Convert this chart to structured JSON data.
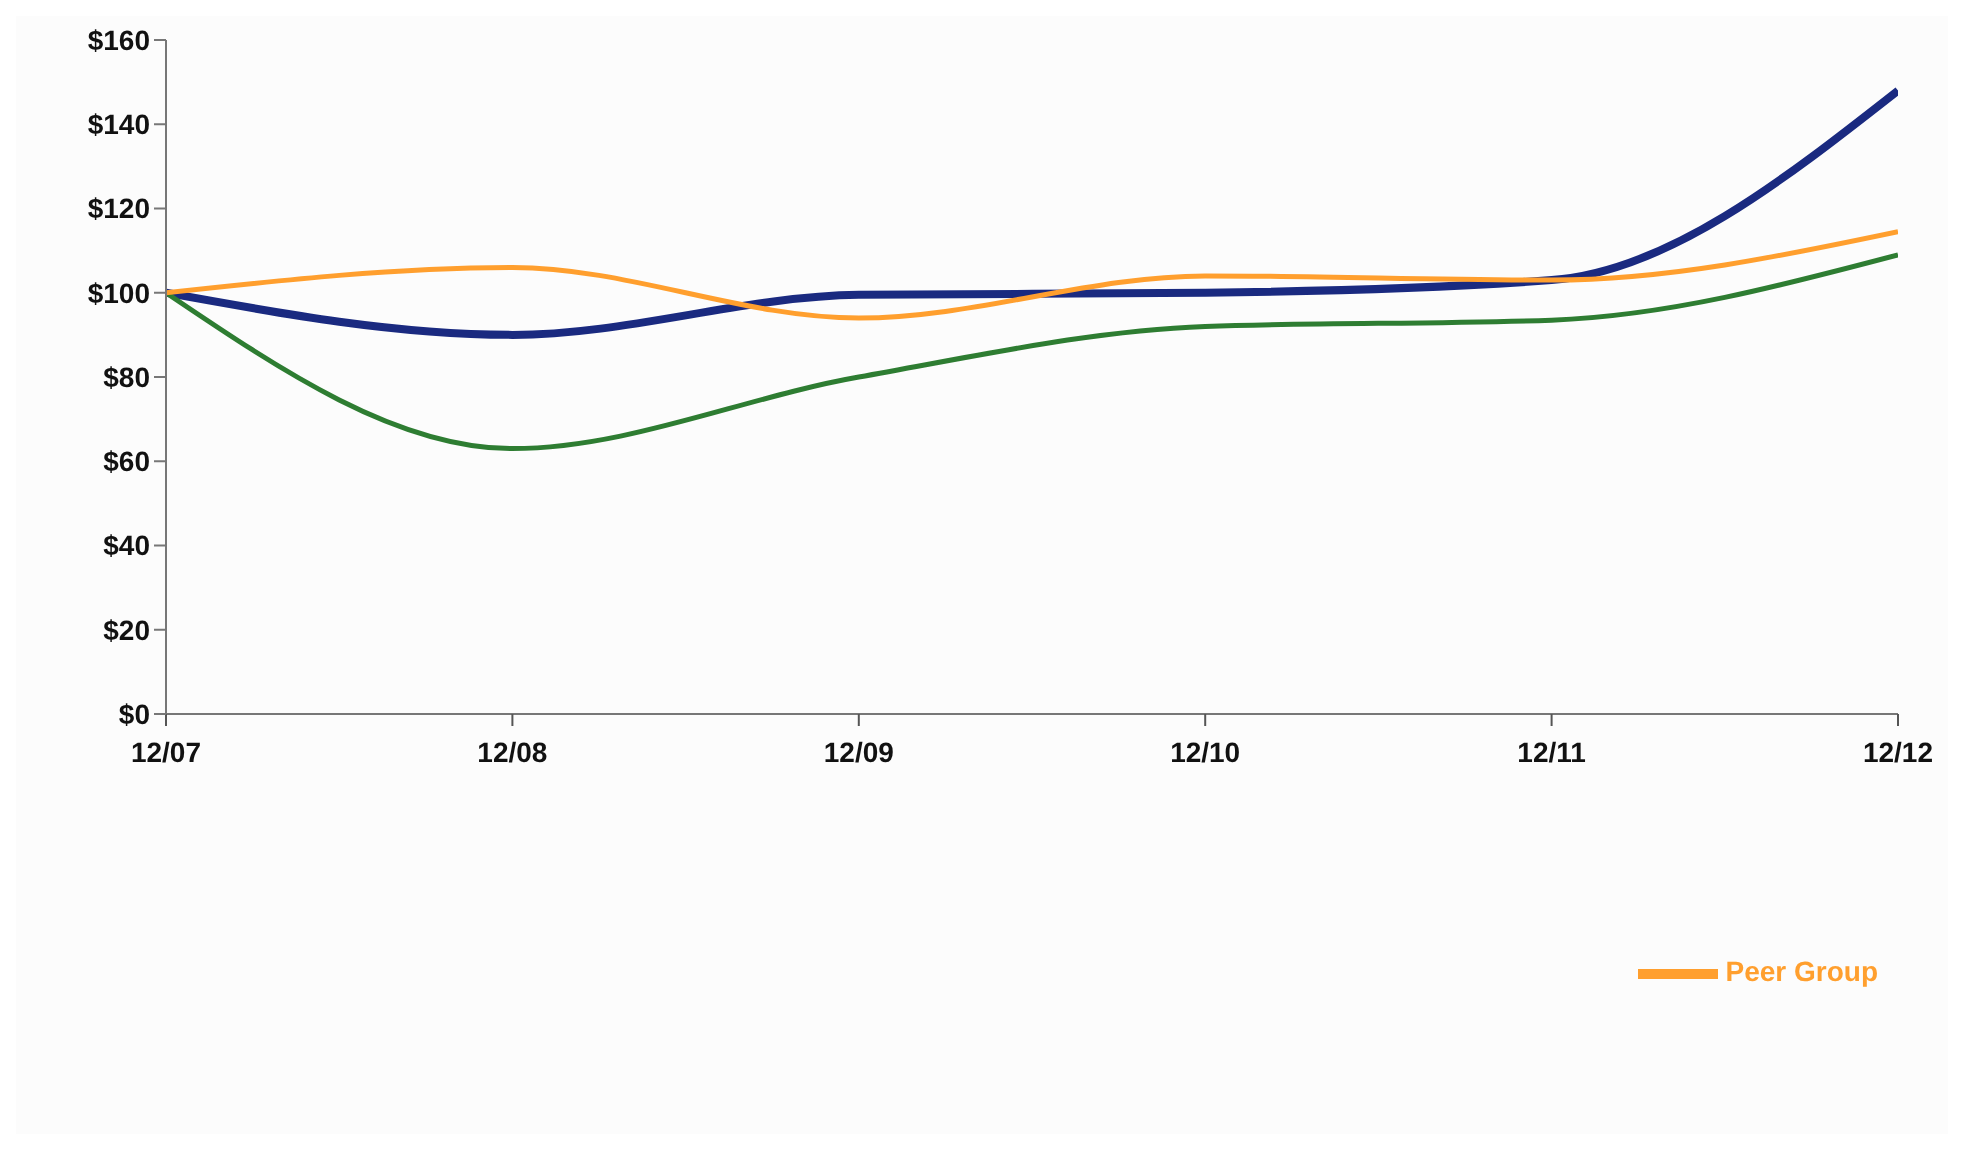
{
  "chart_data": {
    "type": "line",
    "categories": [
      "12/07",
      "12/08",
      "12/09",
      "12/10",
      "12/11",
      "12/12"
    ],
    "series": [
      {
        "color": "#1a2a80",
        "values": [
          100,
          90,
          99.5,
          100,
          103,
          148
        ]
      },
      {
        "color": "#2e7d32",
        "values": [
          100,
          63,
          80,
          92,
          93.5,
          109
        ]
      },
      {
        "name": "Peer Group",
        "color": "#ff9f2e",
        "values": [
          100,
          106,
          94,
          104,
          103,
          114.5
        ]
      }
    ],
    "ylim": [
      0,
      160
    ],
    "yticks": [
      {
        "value": 0,
        "label": "$0"
      },
      {
        "value": 20,
        "label": "$20"
      },
      {
        "value": 40,
        "label": "$40"
      },
      {
        "value": 60,
        "label": "$60"
      },
      {
        "value": 80,
        "label": "$80"
      },
      {
        "value": 100,
        "label": "$100"
      },
      {
        "value": 120,
        "label": "$120"
      },
      {
        "value": 140,
        "label": "$140"
      },
      {
        "value": 160,
        "label": "$160"
      }
    ],
    "grid": false,
    "legend": "bottom",
    "marker": "none",
    "line_style": "solid"
  }
}
